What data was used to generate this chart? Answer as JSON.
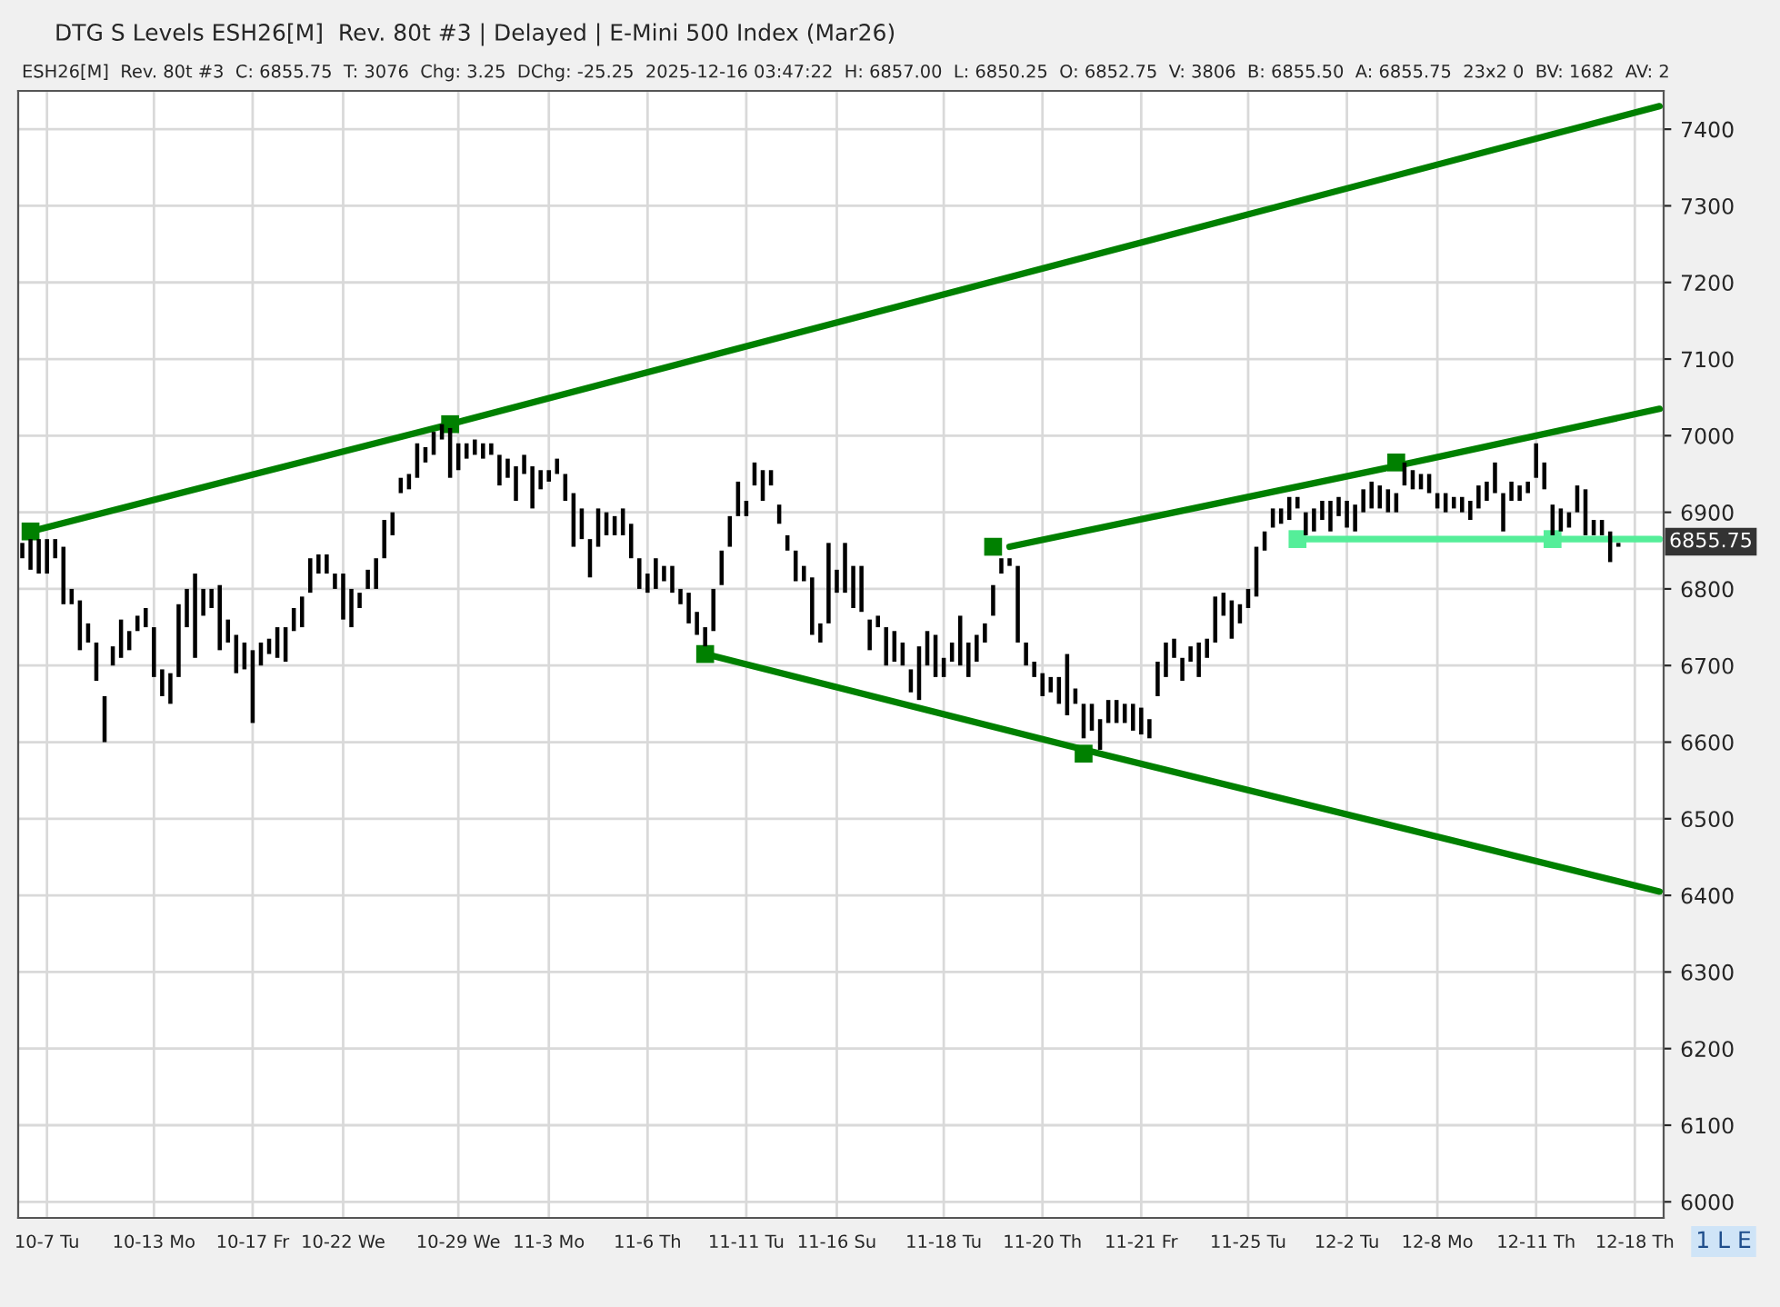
{
  "chart_data": {
    "type": "bar",
    "title": "DTG S Levels ESH26[M]  Rev. 80t #3 | Delayed | E-Mini 500 Index (Mar26)",
    "subtitle": "ESH26[M]  Rev. 80t #3  C: 6855.75  T: 3076  Chg: 3.25  DChg: -25.25  2025-12-16 03:47:22  H: 6857.00  L: 6850.25  O: 6852.75  V: 3806  B: 6855.50  A: 6855.75  23x2 0  BV: 1682  AV: 2",
    "categories": [
      null,
      null,
      null,
      "10-7 Tu",
      null,
      null,
      null,
      null,
      null,
      null,
      null,
      null,
      null,
      null,
      null,
      null,
      "10-13 Mo",
      null,
      null,
      null,
      null,
      null,
      null,
      null,
      null,
      null,
      null,
      null,
      "10-17 Fr",
      null,
      null,
      null,
      null,
      null,
      null,
      null,
      null,
      null,
      null,
      "10-22 We",
      null,
      null,
      null,
      null,
      null,
      null,
      null,
      null,
      null,
      null,
      null,
      null,
      null,
      "10-29 We",
      null,
      null,
      null,
      null,
      null,
      null,
      null,
      null,
      null,
      null,
      "11-3 Mo",
      null,
      null,
      null,
      null,
      null,
      null,
      null,
      null,
      null,
      null,
      null,
      "11-6 Th",
      null,
      null,
      null,
      null,
      null,
      null,
      null,
      null,
      null,
      null,
      null,
      "11-11 Tu",
      null,
      null,
      null,
      null,
      null,
      null,
      null,
      null,
      null,
      null,
      "11-16 Su",
      null,
      null,
      null,
      null,
      null,
      null,
      null,
      null,
      null,
      null,
      null,
      null,
      "11-18 Tu",
      null,
      null,
      null,
      null,
      null,
      null,
      null,
      null,
      null,
      null,
      null,
      "11-20 Th",
      null,
      null,
      null,
      null,
      null,
      null,
      null,
      null,
      null,
      null,
      null,
      "11-21 Fr",
      null,
      null,
      null,
      null,
      null,
      null,
      null,
      null,
      null,
      null,
      null,
      null,
      "11-25 Tu",
      null,
      null,
      null,
      null,
      null,
      null,
      null,
      null,
      null,
      null,
      null,
      "12-2 Tu",
      null,
      null,
      null,
      null,
      null,
      null,
      null,
      null,
      null,
      null,
      "12-8 Mo",
      null,
      null,
      null,
      null,
      null,
      null,
      null,
      null,
      null,
      null,
      null,
      "12-11 Th",
      null,
      null,
      null,
      null,
      null,
      null,
      null,
      null,
      null,
      null,
      null,
      "12-18 Th",
      null,
      null,
      null
    ],
    "ylim": [
      5979,
      7450
    ],
    "yticks": [
      6000,
      6100,
      6200,
      6300,
      6400,
      6500,
      6600,
      6700,
      6800,
      6900,
      7000,
      7100,
      7200,
      7300,
      7400
    ],
    "grid": true,
    "annotations": [
      "6855.75",
      "1 L E"
    ],
    "series": [
      {
        "color": "#000000",
        "base": [
          6840,
          6825,
          6820,
          6820,
          6840,
          6780,
          6780,
          6720,
          6730,
          6680,
          6600,
          6700,
          6710,
          6720,
          6745,
          6750,
          6685,
          6660,
          6650,
          6685,
          6750,
          6710,
          6765,
          6775,
          6720,
          6730,
          6690,
          6695,
          6625,
          6700,
          6715,
          6710,
          6705,
          6745,
          6750,
          6795,
          6820,
          6820,
          6800,
          6760,
          6750,
          6775,
          6800,
          6800,
          6840,
          6870,
          6925,
          6930,
          6945,
          6965,
          6975,
          6995,
          6945,
          6955,
          6970,
          6975,
          6970,
          6975,
          6935,
          6945,
          6915,
          6950,
          6905,
          6930,
          6940,
          6950,
          6915,
          6855,
          6865,
          6815,
          6855,
          6870,
          6870,
          6870,
          6840,
          6800,
          6795,
          6800,
          6810,
          6795,
          6780,
          6755,
          6740,
          6725,
          6745,
          6805,
          6855,
          6895,
          6895,
          6935,
          6915,
          6935,
          6885,
          6850,
          6810,
          6810,
          6740,
          6730,
          6755,
          6795,
          6795,
          6775,
          6770,
          6720,
          6750,
          6700,
          6705,
          6700,
          6665,
          6655,
          6700,
          6685,
          6685,
          6705,
          6700,
          6685,
          6705,
          6730,
          6765,
          6820,
          6830,
          6730,
          6700,
          6685,
          6660,
          6665,
          6650,
          6635,
          6650,
          6605,
          6615,
          6590,
          6625,
          6625,
          6625,
          6615,
          6610,
          6605,
          6660,
          6685,
          6710,
          6680,
          6705,
          6685,
          6710,
          6730,
          6765,
          6735,
          6755,
          6775,
          6790,
          6850,
          6880,
          6885,
          6890,
          6905,
          6870,
          6875,
          6890,
          6875,
          6895,
          6880,
          6875,
          6900,
          6905,
          6905,
          6900,
          6900,
          6935,
          6930,
          6930,
          6925,
          6905,
          6900,
          6905,
          6900,
          6890,
          6905,
          6915,
          6925,
          6875,
          6915,
          6915,
          6925,
          6945,
          6930,
          6870,
          6875,
          6880,
          6900,
          6870,
          6870,
          6870,
          6835,
          6855,
          null,
          null,
          null,
          null,
          null
        ],
        "values": [
          20,
          40,
          45,
          45,
          25,
          75,
          20,
          65,
          25,
          50,
          60,
          25,
          50,
          25,
          20,
          25,
          65,
          35,
          40,
          95,
          50,
          110,
          35,
          25,
          85,
          30,
          50,
          35,
          95,
          30,
          20,
          40,
          45,
          30,
          40,
          45,
          25,
          25,
          20,
          60,
          50,
          20,
          25,
          40,
          50,
          30,
          20,
          20,
          45,
          20,
          30,
          20,
          65,
          35,
          20,
          20,
          20,
          15,
          40,
          25,
          45,
          25,
          55,
          25,
          15,
          20,
          35,
          70,
          40,
          50,
          50,
          30,
          25,
          35,
          45,
          40,
          25,
          40,
          20,
          35,
          20,
          40,
          30,
          25,
          55,
          45,
          40,
          45,
          20,
          30,
          40,
          20,
          25,
          20,
          40,
          20,
          75,
          25,
          105,
          30,
          65,
          55,
          60,
          40,
          15,
          50,
          40,
          30,
          30,
          70,
          45,
          55,
          25,
          25,
          65,
          45,
          35,
          25,
          40,
          20,
          10,
          100,
          30,
          20,
          30,
          20,
          35,
          80,
          20,
          45,
          35,
          40,
          30,
          30,
          25,
          35,
          35,
          25,
          45,
          45,
          25,
          30,
          20,
          45,
          25,
          60,
          30,
          50,
          25,
          25,
          65,
          25,
          25,
          20,
          30,
          15,
          30,
          30,
          25,
          40,
          25,
          35,
          35,
          30,
          35,
          30,
          30,
          25,
          30,
          25,
          20,
          25,
          20,
          25,
          15,
          20,
          25,
          30,
          25,
          40,
          50,
          25,
          20,
          15,
          45,
          35,
          40,
          30,
          20,
          35,
          60,
          20,
          20,
          40,
          5,
          null,
          null,
          null,
          null,
          null
        ]
      },
      {
        "type": "line",
        "color": "#008000",
        "values": [
          null,
          6875,
          null,
          null,
          null,
          null,
          null,
          null,
          null,
          null,
          null,
          null,
          null,
          null,
          null,
          null,
          null,
          null,
          null,
          null,
          null,
          null,
          null,
          null,
          null,
          null,
          null,
          null,
          null,
          null,
          null,
          null,
          null,
          null,
          null,
          null,
          null,
          null,
          null,
          null,
          null,
          null,
          null,
          null,
          null,
          null,
          null,
          null,
          null,
          null,
          null,
          null,
          7015,
          null,
          null,
          null,
          null,
          null,
          null,
          null,
          null,
          null,
          null,
          null,
          null,
          null,
          null,
          null,
          null,
          null,
          null,
          null,
          null,
          null,
          null,
          null,
          null,
          null,
          null,
          null,
          null,
          null,
          null,
          null,
          null,
          null,
          null,
          null,
          null,
          null,
          null,
          null,
          null,
          null,
          null,
          null,
          null,
          null,
          null,
          null,
          null,
          null,
          null,
          null,
          null,
          null,
          null,
          null,
          null,
          null,
          null,
          null,
          null,
          null,
          null,
          null,
          null,
          null,
          null,
          null,
          null,
          null,
          null,
          null,
          null,
          null,
          null,
          null,
          null,
          null,
          null,
          null,
          null,
          null,
          null,
          null,
          null,
          null,
          null,
          null,
          null,
          null,
          null,
          null,
          null,
          null,
          null,
          null,
          null,
          null,
          null,
          null,
          null,
          null,
          null,
          null,
          null,
          null,
          null,
          null,
          null,
          null,
          null,
          null,
          null,
          null,
          null,
          null,
          null,
          null,
          null,
          null,
          null,
          null,
          null,
          null,
          null,
          null,
          null,
          null,
          null,
          null,
          null,
          null,
          null,
          null,
          null,
          null,
          null,
          null,
          null,
          null,
          null,
          null,
          null,
          null,
          null,
          null,
          null,
          7430
        ]
      },
      {
        "type": "line",
        "color": "#008000",
        "values": [
          null,
          null,
          null,
          null,
          null,
          null,
          null,
          null,
          null,
          null,
          null,
          null,
          null,
          null,
          null,
          null,
          null,
          null,
          null,
          null,
          null,
          null,
          null,
          null,
          null,
          null,
          null,
          null,
          null,
          null,
          null,
          null,
          null,
          null,
          null,
          null,
          null,
          null,
          null,
          null,
          null,
          null,
          null,
          null,
          null,
          null,
          null,
          null,
          null,
          null,
          null,
          null,
          null,
          null,
          null,
          null,
          null,
          null,
          null,
          null,
          null,
          null,
          null,
          null,
          null,
          null,
          null,
          null,
          null,
          null,
          null,
          null,
          null,
          null,
          null,
          null,
          null,
          null,
          null,
          null,
          null,
          null,
          null,
          null,
          null,
          null,
          null,
          null,
          null,
          null,
          null,
          null,
          null,
          null,
          null,
          null,
          null,
          null,
          null,
          null,
          null,
          null,
          null,
          null,
          null,
          null,
          null,
          null,
          null,
          null,
          null,
          null,
          null,
          null,
          null,
          null,
          null,
          null,
          null,
          null,
          6855,
          null,
          null,
          null,
          null,
          null,
          null,
          null,
          null,
          null,
          null,
          null,
          null,
          null,
          null,
          null,
          null,
          null,
          null,
          null,
          null,
          null,
          null,
          null,
          null,
          null,
          null,
          null,
          null,
          null,
          null,
          null,
          null,
          null,
          null,
          null,
          null,
          null,
          null,
          null,
          null,
          null,
          null,
          null,
          null,
          null,
          null,
          null,
          null,
          6965,
          null,
          null,
          null,
          null,
          null,
          null,
          null,
          null,
          null,
          null,
          null,
          null,
          null,
          null,
          null,
          null,
          null,
          null,
          null,
          null,
          null,
          null,
          null,
          null,
          null,
          null,
          null,
          null,
          null,
          7035
        ]
      },
      {
        "type": "line",
        "color": "#008000",
        "values": [
          null,
          null,
          null,
          null,
          null,
          null,
          null,
          null,
          null,
          null,
          null,
          null,
          null,
          null,
          null,
          null,
          null,
          null,
          null,
          null,
          null,
          null,
          null,
          null,
          null,
          null,
          null,
          null,
          null,
          null,
          null,
          null,
          null,
          null,
          null,
          null,
          null,
          null,
          null,
          null,
          null,
          null,
          null,
          null,
          null,
          null,
          null,
          null,
          null,
          null,
          null,
          null,
          null,
          null,
          null,
          null,
          null,
          null,
          null,
          null,
          null,
          null,
          null,
          null,
          null,
          null,
          null,
          null,
          null,
          null,
          null,
          null,
          null,
          null,
          null,
          null,
          null,
          null,
          null,
          null,
          null,
          null,
          null,
          6715,
          null,
          null,
          null,
          null,
          null,
          null,
          null,
          null,
          null,
          null,
          null,
          null,
          null,
          null,
          null,
          null,
          null,
          null,
          null,
          null,
          null,
          null,
          null,
          null,
          null,
          null,
          null,
          null,
          null,
          null,
          null,
          null,
          null,
          null,
          null,
          null,
          null,
          null,
          null,
          null,
          null,
          null,
          null,
          null,
          null,
          null,
          null,
          6585,
          null,
          null,
          null,
          null,
          null,
          null,
          null,
          null,
          null,
          null,
          null,
          null,
          null,
          null,
          null,
          null,
          null,
          null,
          null,
          null,
          null,
          null,
          null,
          null,
          null,
          null,
          null,
          null,
          null,
          null,
          null,
          null,
          null,
          null,
          null,
          null,
          null,
          null,
          null,
          null,
          null,
          null,
          null,
          null,
          null,
          null,
          null,
          null,
          null,
          null,
          null,
          null,
          null,
          null,
          null,
          null,
          null,
          null,
          null,
          null,
          null,
          null,
          null,
          null,
          null,
          null,
          null,
          6405
        ]
      },
      {
        "type": "line",
        "color": "#55ee99",
        "values": [
          null,
          null,
          null,
          null,
          null,
          null,
          null,
          null,
          null,
          null,
          null,
          null,
          null,
          null,
          null,
          null,
          null,
          null,
          null,
          null,
          null,
          null,
          null,
          null,
          null,
          null,
          null,
          null,
          null,
          null,
          null,
          null,
          null,
          null,
          null,
          null,
          null,
          null,
          null,
          null,
          null,
          null,
          null,
          null,
          null,
          null,
          null,
          null,
          null,
          null,
          null,
          null,
          null,
          null,
          null,
          null,
          null,
          null,
          null,
          null,
          null,
          null,
          null,
          null,
          null,
          null,
          null,
          null,
          null,
          null,
          null,
          null,
          null,
          null,
          null,
          null,
          null,
          null,
          null,
          null,
          null,
          null,
          null,
          null,
          null,
          null,
          null,
          null,
          null,
          null,
          null,
          null,
          null,
          null,
          null,
          null,
          null,
          null,
          null,
          null,
          null,
          null,
          null,
          null,
          null,
          null,
          null,
          null,
          null,
          null,
          null,
          null,
          null,
          null,
          null,
          null,
          null,
          null,
          null,
          null,
          null,
          null,
          null,
          null,
          null,
          null,
          null,
          null,
          null,
          null,
          null,
          null,
          null,
          null,
          null,
          null,
          null,
          null,
          null,
          null,
          null,
          null,
          null,
          null,
          null,
          null,
          null,
          null,
          null,
          null,
          null,
          null,
          null,
          null,
          null,
          6865,
          null,
          null,
          null,
          null,
          null,
          null,
          null,
          null,
          null,
          null,
          null,
          null,
          null,
          null,
          null,
          null,
          null,
          null,
          null,
          null,
          null,
          null,
          null,
          null,
          null,
          null,
          null,
          null,
          null,
          null,
          6865,
          null,
          null,
          null,
          null,
          null,
          null,
          null,
          null,
          null,
          null,
          null,
          null,
          6865
        ]
      },
      {
        "type": "scatter",
        "color": "#008000",
        "marker": "square",
        "values": [
          null,
          6875,
          null,
          null,
          null,
          null,
          null,
          null,
          null,
          null,
          null,
          null,
          null,
          null,
          null,
          null,
          null,
          null,
          null,
          null,
          null,
          null,
          null,
          null,
          null,
          null,
          null,
          null,
          null,
          null,
          null,
          null,
          null,
          null,
          null,
          null,
          null,
          null,
          null,
          null,
          null,
          null,
          null,
          null,
          null,
          null,
          null,
          null,
          null,
          null,
          null,
          null,
          7015,
          null,
          null,
          null,
          null,
          null,
          null,
          null,
          null,
          null,
          null,
          null,
          null,
          null,
          null,
          null,
          null,
          null,
          null,
          null,
          null,
          null,
          null,
          null,
          null,
          null,
          null,
          null,
          null,
          null,
          null,
          6715,
          null,
          null,
          null,
          null,
          null,
          null,
          null,
          null,
          null,
          null,
          null,
          null,
          null,
          null,
          null,
          null,
          null,
          null,
          null,
          null,
          null,
          null,
          null,
          null,
          null,
          null,
          null,
          null,
          null,
          null,
          null,
          null,
          null,
          null,
          6855,
          null,
          null,
          null,
          null,
          null,
          null,
          null,
          null,
          null,
          null,
          6585,
          null,
          null,
          null,
          null,
          null,
          null,
          null,
          null,
          null,
          null,
          null,
          null,
          null,
          null,
          null,
          null,
          null,
          null,
          null,
          null,
          null,
          null,
          null,
          null,
          null,
          null,
          null,
          null,
          null,
          null,
          null,
          null,
          null,
          null,
          null,
          null,
          null,
          6965,
          null,
          null,
          null,
          null,
          null,
          null,
          null,
          null,
          null,
          null,
          null,
          null,
          null,
          null,
          null,
          null,
          null,
          null,
          null,
          null,
          null,
          null,
          null,
          null,
          null,
          null,
          null,
          null,
          null,
          null,
          null,
          null
        ]
      },
      {
        "type": "scatter",
        "color": "#55ee99",
        "marker": "square",
        "values": [
          null,
          null,
          null,
          null,
          null,
          null,
          null,
          null,
          null,
          null,
          null,
          null,
          null,
          null,
          null,
          null,
          null,
          null,
          null,
          null,
          null,
          null,
          null,
          null,
          null,
          null,
          null,
          null,
          null,
          null,
          null,
          null,
          null,
          null,
          null,
          null,
          null,
          null,
          null,
          null,
          null,
          null,
          null,
          null,
          null,
          null,
          null,
          null,
          null,
          null,
          null,
          null,
          null,
          null,
          null,
          null,
          null,
          null,
          null,
          null,
          null,
          null,
          null,
          null,
          null,
          null,
          null,
          null,
          null,
          null,
          null,
          null,
          null,
          null,
          null,
          null,
          null,
          null,
          null,
          null,
          null,
          null,
          null,
          null,
          null,
          null,
          null,
          null,
          null,
          null,
          null,
          null,
          null,
          null,
          null,
          null,
          null,
          null,
          null,
          null,
          null,
          null,
          null,
          null,
          null,
          null,
          null,
          null,
          null,
          null,
          null,
          null,
          null,
          null,
          null,
          null,
          null,
          null,
          null,
          null,
          null,
          null,
          null,
          null,
          null,
          null,
          null,
          null,
          null,
          null,
          null,
          null,
          null,
          null,
          null,
          null,
          null,
          null,
          null,
          null,
          null,
          null,
          null,
          null,
          null,
          null,
          null,
          null,
          null,
          null,
          null,
          null,
          null,
          null,
          null,
          6865,
          null,
          null,
          null,
          null,
          null,
          null,
          null,
          null,
          null,
          null,
          null,
          null,
          null,
          null,
          null,
          null,
          null,
          null,
          null,
          null,
          null,
          null,
          null,
          null,
          null,
          null,
          null,
          null,
          null,
          null,
          6865,
          null,
          null,
          null,
          null,
          null,
          null,
          null,
          null,
          null,
          null,
          null,
          null,
          null
        ]
      }
    ]
  }
}
